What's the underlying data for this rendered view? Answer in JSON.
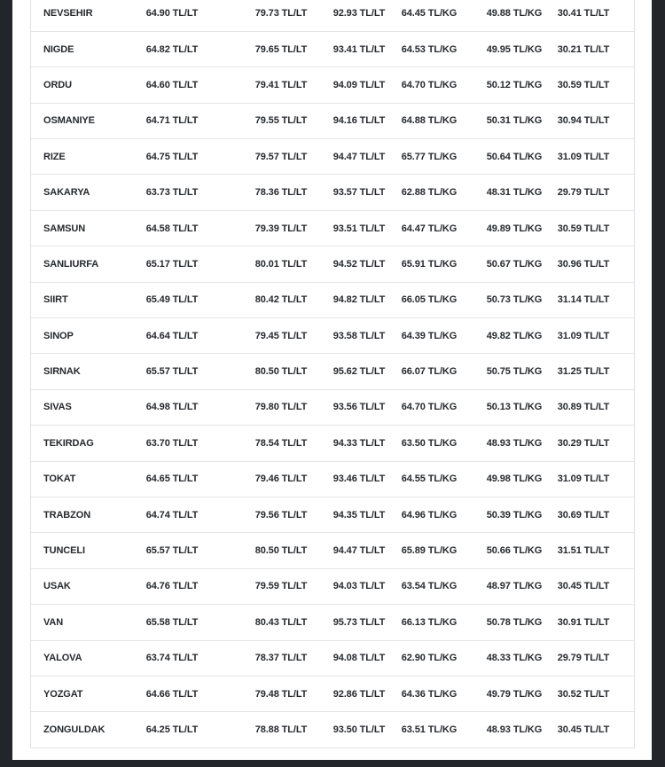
{
  "page": {
    "background_color": "#22262b",
    "card_background_color": "#ffffff",
    "separator_color": "#e2e5e8",
    "text_color": "#26292d"
  },
  "table": {
    "column_units": [
      "TL/LT",
      "TL/LT",
      "TL/LT",
      "TL/KG",
      "TL/KG",
      "TL/LT"
    ],
    "rows": [
      {
        "city": "NEVSEHIR",
        "cells": [
          "64.90 TL/LT",
          "79.73 TL/LT",
          "92.93 TL/LT",
          "64.45 TL/KG",
          "49.88 TL/KG",
          "30.41 TL/LT"
        ]
      },
      {
        "city": "NIGDE",
        "cells": [
          "64.82 TL/LT",
          "79.65 TL/LT",
          "93.41 TL/LT",
          "64.53 TL/KG",
          "49.95 TL/KG",
          "30.21 TL/LT"
        ]
      },
      {
        "city": "ORDU",
        "cells": [
          "64.60 TL/LT",
          "79.41 TL/LT",
          "94.09 TL/LT",
          "64.70 TL/KG",
          "50.12 TL/KG",
          "30.59 TL/LT"
        ]
      },
      {
        "city": "OSMANIYE",
        "cells": [
          "64.71 TL/LT",
          "79.55 TL/LT",
          "94.16 TL/LT",
          "64.88 TL/KG",
          "50.31 TL/KG",
          "30.94 TL/LT"
        ]
      },
      {
        "city": "RIZE",
        "cells": [
          "64.75 TL/LT",
          "79.57 TL/LT",
          "94.47 TL/LT",
          "65.77 TL/KG",
          "50.64 TL/KG",
          "31.09 TL/LT"
        ]
      },
      {
        "city": "SAKARYA",
        "cells": [
          "63.73 TL/LT",
          "78.36 TL/LT",
          "93.57 TL/LT",
          "62.88 TL/KG",
          "48.31 TL/KG",
          "29.79 TL/LT"
        ]
      },
      {
        "city": "SAMSUN",
        "cells": [
          "64.58 TL/LT",
          "79.39 TL/LT",
          "93.51 TL/LT",
          "64.47 TL/KG",
          "49.89 TL/KG",
          "30.59 TL/LT"
        ]
      },
      {
        "city": "SANLIURFA",
        "cells": [
          "65.17 TL/LT",
          "80.01 TL/LT",
          "94.52 TL/LT",
          "65.91 TL/KG",
          "50.67 TL/KG",
          "30.96 TL/LT"
        ]
      },
      {
        "city": "SIIRT",
        "cells": [
          "65.49 TL/LT",
          "80.42 TL/LT",
          "94.82 TL/LT",
          "66.05 TL/KG",
          "50.73 TL/KG",
          "31.14 TL/LT"
        ]
      },
      {
        "city": "SINOP",
        "cells": [
          "64.64 TL/LT",
          "79.45 TL/LT",
          "93.58 TL/LT",
          "64.39 TL/KG",
          "49.82 TL/KG",
          "31.09 TL/LT"
        ]
      },
      {
        "city": "SIRNAK",
        "cells": [
          "65.57 TL/LT",
          "80.50 TL/LT",
          "95.62 TL/LT",
          "66.07 TL/KG",
          "50.75 TL/KG",
          "31.25 TL/LT"
        ]
      },
      {
        "city": "SIVAS",
        "cells": [
          "64.98 TL/LT",
          "79.80 TL/LT",
          "93.56 TL/LT",
          "64.70 TL/KG",
          "50.13 TL/KG",
          "30.89 TL/LT"
        ]
      },
      {
        "city": "TEKIRDAG",
        "cells": [
          "63.70 TL/LT",
          "78.54 TL/LT",
          "94.33 TL/LT",
          "63.50 TL/KG",
          "48.93 TL/KG",
          "30.29 TL/LT"
        ]
      },
      {
        "city": "TOKAT",
        "cells": [
          "64.65 TL/LT",
          "79.46 TL/LT",
          "93.46 TL/LT",
          "64.55 TL/KG",
          "49.98 TL/KG",
          "31.09 TL/LT"
        ]
      },
      {
        "city": "TRABZON",
        "cells": [
          "64.74 TL/LT",
          "79.56 TL/LT",
          "94.35 TL/LT",
          "64.96 TL/KG",
          "50.39 TL/KG",
          "30.69 TL/LT"
        ]
      },
      {
        "city": "TUNCELI",
        "cells": [
          "65.57 TL/LT",
          "80.50 TL/LT",
          "94.47 TL/LT",
          "65.89 TL/KG",
          "50.66 TL/KG",
          "31.51 TL/LT"
        ]
      },
      {
        "city": "USAK",
        "cells": [
          "64.76 TL/LT",
          "79.59 TL/LT",
          "94.03 TL/LT",
          "63.54 TL/KG",
          "48.97 TL/KG",
          "30.45 TL/LT"
        ]
      },
      {
        "city": "VAN",
        "cells": [
          "65.58 TL/LT",
          "80.43 TL/LT",
          "95.73 TL/LT",
          "66.13 TL/KG",
          "50.78 TL/KG",
          "30.91 TL/LT"
        ]
      },
      {
        "city": "YALOVA",
        "cells": [
          "63.74 TL/LT",
          "78.37 TL/LT",
          "94.08 TL/LT",
          "62.90 TL/KG",
          "48.33 TL/KG",
          "29.79 TL/LT"
        ]
      },
      {
        "city": "YOZGAT",
        "cells": [
          "64.66 TL/LT",
          "79.48 TL/LT",
          "92.86 TL/LT",
          "64.36 TL/KG",
          "49.79 TL/KG",
          "30.52 TL/LT"
        ]
      },
      {
        "city": "ZONGULDAK",
        "cells": [
          "64.25 TL/LT",
          "78.88 TL/LT",
          "93.50 TL/LT",
          "63.51 TL/KG",
          "48.93 TL/KG",
          "30.45 TL/LT"
        ]
      }
    ]
  }
}
